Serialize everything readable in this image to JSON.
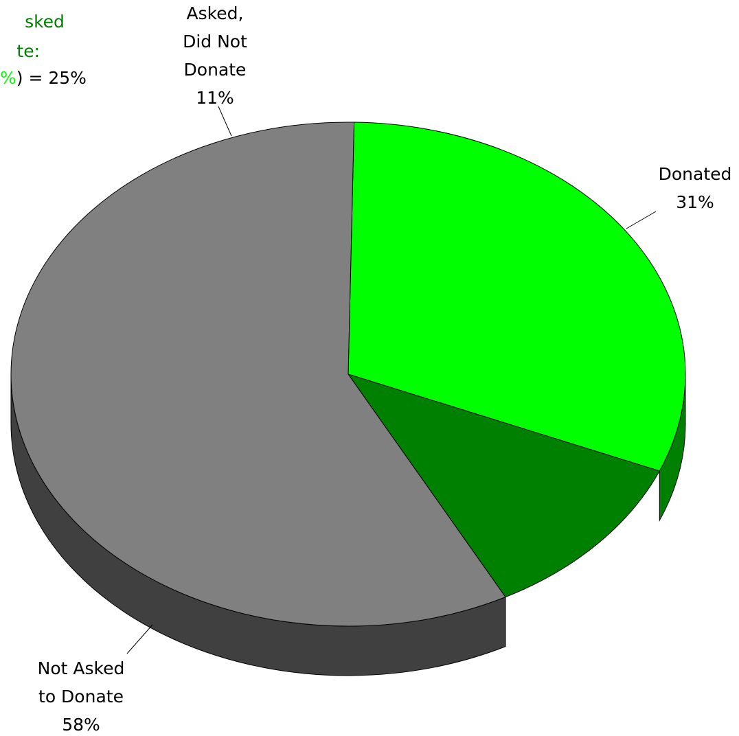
{
  "chart_data": {
    "type": "pie",
    "categories": [
      "Donated",
      "Asked, Did Not Donate",
      "Not Asked to Donate"
    ],
    "values": [
      31,
      11,
      58
    ],
    "unit": "%",
    "colors": {
      "Donated": "#00ff00",
      "Asked, Did Not Donate": "#008000",
      "Not Asked to Donate": "#808080"
    },
    "side_colors": {
      "Donated": "#008000",
      "Not Asked to Donate": "#404040"
    },
    "data_labels": [
      {
        "lines": [
          "Donated",
          "31%"
        ]
      },
      {
        "lines": [
          "Asked,",
          "Did Not",
          "Donate",
          "11%"
        ]
      },
      {
        "lines": [
          "Not Asked",
          "to Donate",
          "58%"
        ]
      }
    ],
    "annotation": {
      "line1": "sked",
      "line2": "te:",
      "line3_green_part": "%",
      "line3_rest": ") = 25%",
      "dark_green": "#008000",
      "light_green": "#00ff00"
    },
    "style": "3d-pie"
  }
}
